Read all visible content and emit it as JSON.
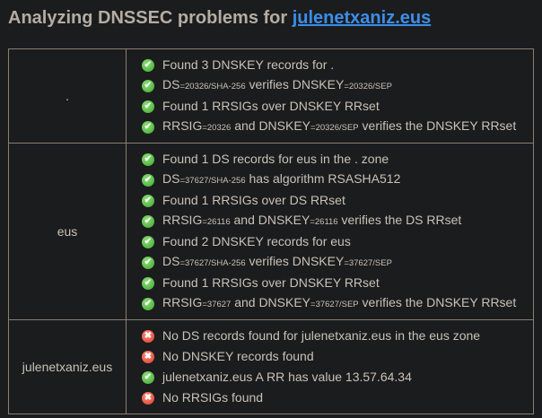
{
  "header": {
    "prefix": "Analyzing DNSSEC problems for ",
    "domain": "julenetxaniz.eus"
  },
  "colors": {
    "ok": "#4caf3a",
    "error": "#e04a36",
    "link": "#3b8eea"
  },
  "zones": [
    {
      "name": ".",
      "messages": [
        {
          "status": "ok",
          "parts": [
            {
              "t": "Found 3 DNSKEY records for ."
            }
          ]
        },
        {
          "status": "ok",
          "parts": [
            {
              "t": "DS"
            },
            {
              "t": "=20326/SHA-256",
              "s": true
            },
            {
              "t": " verifies DNSKEY"
            },
            {
              "t": "=20326/SEP",
              "s": true
            }
          ]
        },
        {
          "status": "ok",
          "parts": [
            {
              "t": "Found 1 RRSIGs over DNSKEY RRset"
            }
          ]
        },
        {
          "status": "ok",
          "parts": [
            {
              "t": "RRSIG"
            },
            {
              "t": "=20326",
              "s": true
            },
            {
              "t": " and DNSKEY"
            },
            {
              "t": "=20326/SEP",
              "s": true
            },
            {
              "t": " verifies the DNSKEY RRset"
            }
          ]
        }
      ]
    },
    {
      "name": "eus",
      "messages": [
        {
          "status": "ok",
          "parts": [
            {
              "t": "Found 1 DS records for eus in the . zone"
            }
          ]
        },
        {
          "status": "ok",
          "parts": [
            {
              "t": "DS"
            },
            {
              "t": "=37627/SHA-256",
              "s": true
            },
            {
              "t": " has algorithm RSASHA512"
            }
          ]
        },
        {
          "status": "ok",
          "parts": [
            {
              "t": "Found 1 RRSIGs over DS RRset"
            }
          ]
        },
        {
          "status": "ok",
          "parts": [
            {
              "t": "RRSIG"
            },
            {
              "t": "=26116",
              "s": true
            },
            {
              "t": " and DNSKEY"
            },
            {
              "t": "=26116",
              "s": true
            },
            {
              "t": " verifies the DS RRset"
            }
          ]
        },
        {
          "status": "ok",
          "parts": [
            {
              "t": "Found 2 DNSKEY records for eus"
            }
          ]
        },
        {
          "status": "ok",
          "parts": [
            {
              "t": "DS"
            },
            {
              "t": "=37627/SHA-256",
              "s": true
            },
            {
              "t": " verifies DNSKEY"
            },
            {
              "t": "=37627/SEP",
              "s": true
            }
          ]
        },
        {
          "status": "ok",
          "parts": [
            {
              "t": "Found 1 RRSIGs over DNSKEY RRset"
            }
          ]
        },
        {
          "status": "ok",
          "parts": [
            {
              "t": "RRSIG"
            },
            {
              "t": "=37627",
              "s": true
            },
            {
              "t": " and DNSKEY"
            },
            {
              "t": "=37627/SEP",
              "s": true
            },
            {
              "t": " verifies the DNSKEY RRset"
            }
          ]
        }
      ]
    },
    {
      "name": "julenetxaniz.eus",
      "messages": [
        {
          "status": "error",
          "parts": [
            {
              "t": "No DS records found for julenetxaniz.eus in the eus zone"
            }
          ]
        },
        {
          "status": "error",
          "parts": [
            {
              "t": "No DNSKEY records found"
            }
          ]
        },
        {
          "status": "ok",
          "parts": [
            {
              "t": "julenetxaniz.eus A RR has value 13.57.64.34"
            }
          ]
        },
        {
          "status": "error",
          "parts": [
            {
              "t": "No RRSIGs found"
            }
          ]
        }
      ]
    }
  ]
}
